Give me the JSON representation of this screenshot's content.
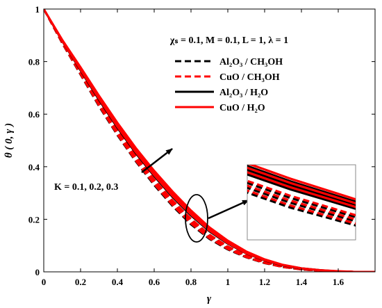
{
  "chart_data": {
    "type": "line",
    "xlabel": "γ",
    "ylabel": "θ ( 0, γ )",
    "xlim": [
      0,
      1.8
    ],
    "ylim": [
      0,
      1
    ],
    "xticks": [
      "0",
      "0.2",
      "0.4",
      "0.6",
      "0.8",
      "1",
      "1.2",
      "1.4",
      "1.6"
    ],
    "yticks": [
      "0",
      "0.2",
      "0.4",
      "0.6",
      "0.8",
      "1"
    ],
    "grid": false,
    "legend_position": "top-right",
    "parameters_text": "χs = 0.1, M = 0.1, L = 1, λ = 1",
    "annotation_text": "K = 0.1, 0.2, 0.3",
    "legend": [
      {
        "label": "Al2O3 / CH3OH",
        "color": "#000000",
        "style": "dashed"
      },
      {
        "label": "CuO / CH3OH",
        "color": "#ff0000",
        "style": "dashed"
      },
      {
        "label": "Al2O3 / H2O",
        "color": "#000000",
        "style": "solid"
      },
      {
        "label": "CuO / H2O",
        "color": "#ff0000",
        "style": "solid"
      }
    ],
    "x": [
      0,
      0.1,
      0.2,
      0.3,
      0.4,
      0.5,
      0.6,
      0.7,
      0.8,
      0.9,
      1.0,
      1.1,
      1.2,
      1.3,
      1.4,
      1.5,
      1.6,
      1.7,
      1.8
    ],
    "series": [
      {
        "nf": "Al2O3 / CH3OH",
        "K": 0.1,
        "color": "#000000",
        "dash": "dashed",
        "values": [
          1,
          0.87,
          0.75,
          0.63,
          0.52,
          0.42,
          0.33,
          0.25,
          0.18,
          0.125,
          0.085,
          0.055,
          0.033,
          0.018,
          0.009,
          0.004,
          0.001,
          0,
          0
        ]
      },
      {
        "nf": "Al2O3 / CH3OH",
        "K": 0.2,
        "color": "#000000",
        "dash": "dashed",
        "values": [
          1,
          0.872,
          0.755,
          0.637,
          0.528,
          0.428,
          0.339,
          0.259,
          0.189,
          0.132,
          0.09,
          0.058,
          0.035,
          0.019,
          0.01,
          0.004,
          0.001,
          0,
          0
        ]
      },
      {
        "nf": "Al2O3 / CH3OH",
        "K": 0.3,
        "color": "#000000",
        "dash": "dashed",
        "values": [
          1,
          0.874,
          0.76,
          0.644,
          0.536,
          0.436,
          0.348,
          0.268,
          0.198,
          0.139,
          0.095,
          0.061,
          0.037,
          0.02,
          0.01,
          0.005,
          0.002,
          0,
          0
        ]
      },
      {
        "nf": "CuO / CH3OH",
        "K": 0.1,
        "color": "#ff0000",
        "dash": "dashed",
        "values": [
          1,
          0.871,
          0.752,
          0.633,
          0.523,
          0.423,
          0.334,
          0.254,
          0.184,
          0.128,
          0.087,
          0.056,
          0.034,
          0.018,
          0.009,
          0.004,
          0.001,
          0,
          0
        ]
      },
      {
        "nf": "CuO / CH3OH",
        "K": 0.2,
        "color": "#ff0000",
        "dash": "dashed",
        "values": [
          1,
          0.873,
          0.757,
          0.64,
          0.531,
          0.431,
          0.343,
          0.263,
          0.193,
          0.135,
          0.092,
          0.059,
          0.036,
          0.019,
          0.01,
          0.004,
          0.001,
          0,
          0
        ]
      },
      {
        "nf": "CuO / CH3OH",
        "K": 0.3,
        "color": "#ff0000",
        "dash": "dashed",
        "values": [
          1,
          0.875,
          0.762,
          0.647,
          0.539,
          0.44,
          0.352,
          0.272,
          0.202,
          0.142,
          0.097,
          0.063,
          0.038,
          0.021,
          0.011,
          0.005,
          0.002,
          0,
          0
        ]
      },
      {
        "nf": "Al2O3 / H2O",
        "K": 0.1,
        "color": "#000000",
        "dash": "solid",
        "values": [
          1,
          0.878,
          0.766,
          0.654,
          0.548,
          0.451,
          0.364,
          0.284,
          0.214,
          0.154,
          0.107,
          0.07,
          0.043,
          0.024,
          0.012,
          0.006,
          0.002,
          0,
          0
        ]
      },
      {
        "nf": "Al2O3 / H2O",
        "K": 0.2,
        "color": "#000000",
        "dash": "solid",
        "values": [
          1,
          0.88,
          0.771,
          0.661,
          0.556,
          0.459,
          0.372,
          0.293,
          0.222,
          0.16,
          0.111,
          0.073,
          0.045,
          0.025,
          0.013,
          0.006,
          0.002,
          0,
          0
        ]
      },
      {
        "nf": "Al2O3 / H2O",
        "K": 0.3,
        "color": "#000000",
        "dash": "solid",
        "values": [
          1,
          0.882,
          0.776,
          0.667,
          0.563,
          0.467,
          0.38,
          0.301,
          0.229,
          0.166,
          0.116,
          0.076,
          0.047,
          0.026,
          0.014,
          0.007,
          0.002,
          0,
          0
        ]
      },
      {
        "nf": "CuO / H2O",
        "K": 0.1,
        "color": "#ff0000",
        "dash": "solid",
        "values": [
          1,
          0.879,
          0.769,
          0.658,
          0.552,
          0.455,
          0.368,
          0.288,
          0.218,
          0.157,
          0.109,
          0.071,
          0.044,
          0.025,
          0.013,
          0.006,
          0.002,
          0,
          0
        ]
      },
      {
        "nf": "CuO / H2O",
        "K": 0.2,
        "color": "#ff0000",
        "dash": "solid",
        "values": [
          1,
          0.881,
          0.774,
          0.664,
          0.56,
          0.463,
          0.376,
          0.297,
          0.226,
          0.163,
          0.114,
          0.075,
          0.046,
          0.026,
          0.013,
          0.006,
          0.002,
          0,
          0
        ]
      },
      {
        "nf": "CuO / H2O",
        "K": 0.3,
        "color": "#ff0000",
        "dash": "solid",
        "values": [
          1,
          0.884,
          0.779,
          0.671,
          0.568,
          0.472,
          0.385,
          0.306,
          0.234,
          0.17,
          0.119,
          0.078,
          0.048,
          0.027,
          0.014,
          0.007,
          0.003,
          0,
          0
        ]
      }
    ]
  }
}
